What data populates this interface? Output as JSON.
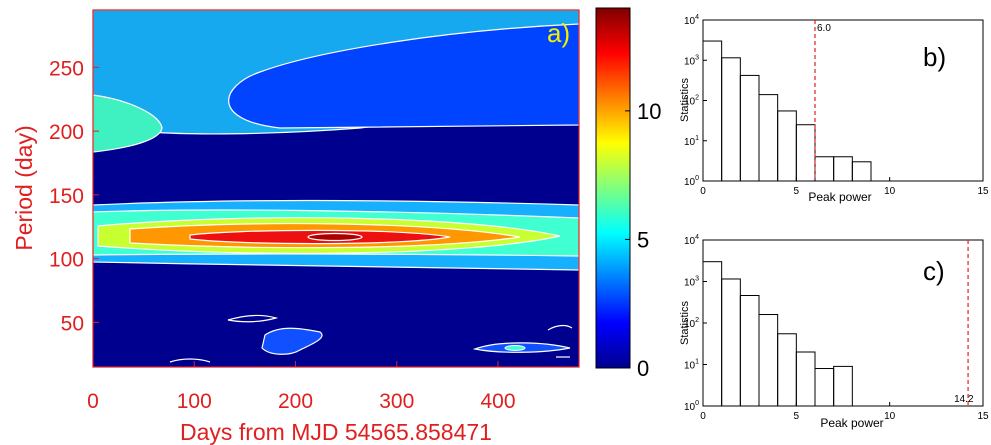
{
  "chart_data": [
    {
      "panel": "a)",
      "type": "heatmap",
      "xlabel": "Days from MJD 54565.858471",
      "ylabel": "Period (day)",
      "xlim": [
        0,
        480
      ],
      "ylim": [
        15,
        295
      ],
      "xticks": [
        0,
        100,
        200,
        300,
        400
      ],
      "yticks": [
        50,
        100,
        150,
        200,
        250
      ],
      "colorbar": {
        "range": [
          0,
          14
        ],
        "ticks": [
          0,
          5,
          10
        ]
      },
      "features": [
        {
          "x": 240,
          "y": 118,
          "value": 14
        },
        {
          "x": 20,
          "y": 207,
          "value": 6
        },
        {
          "x": 410,
          "y": 29,
          "value": 2
        }
      ]
    },
    {
      "panel": "b)",
      "type": "bar",
      "xlabel": "Peak power",
      "ylabel": "Statistics",
      "xlim": [
        0,
        15
      ],
      "xticks": [
        0,
        5,
        10,
        15
      ],
      "yscale": "log",
      "ylim": [
        1,
        10000
      ],
      "yticks": [
        "10^0",
        "10^1",
        "10^2",
        "10^3",
        "10^4"
      ],
      "bin_edges": [
        0,
        1,
        2,
        3,
        4,
        5,
        6,
        7,
        8,
        9
      ],
      "values": [
        3000,
        1150,
        420,
        140,
        55,
        25,
        4,
        4,
        3
      ],
      "threshold": {
        "value": 6.0,
        "label": "6.0"
      }
    },
    {
      "panel": "c)",
      "type": "bar",
      "xlabel": "Peak power",
      "ylabel": "Statistics",
      "xlim": [
        0,
        15
      ],
      "xticks": [
        0,
        5,
        10,
        15
      ],
      "yscale": "log",
      "ylim": [
        1,
        10000
      ],
      "yticks": [
        "10^0",
        "10^1",
        "10^2",
        "10^3",
        "10^4"
      ],
      "bin_edges": [
        0,
        1,
        2,
        3,
        4,
        5,
        6,
        7,
        8
      ],
      "values": [
        3000,
        1150,
        460,
        160,
        55,
        20,
        8,
        9
      ],
      "threshold": {
        "value": 14.2,
        "label": "14.2"
      }
    }
  ]
}
